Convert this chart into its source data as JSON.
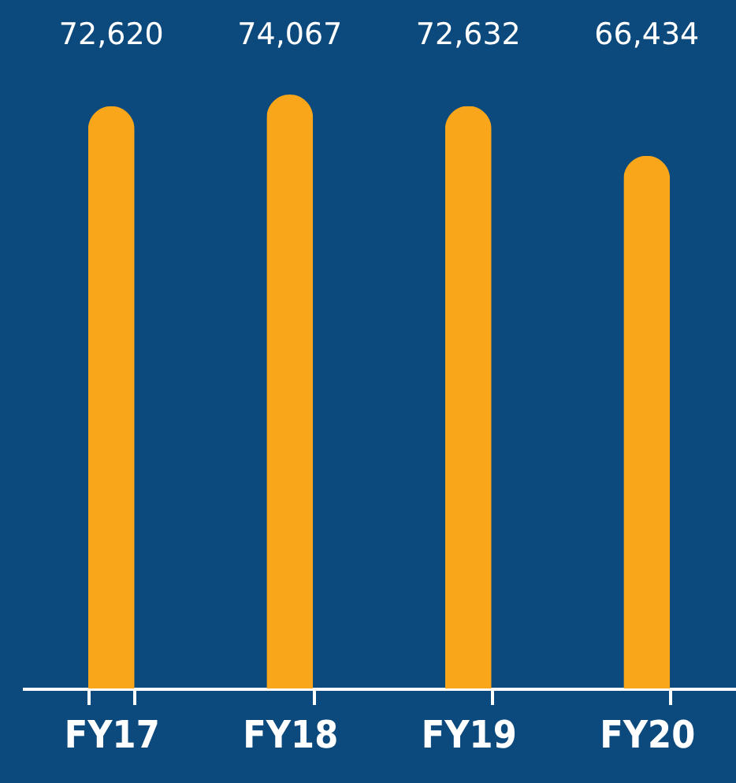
{
  "chart_data": {
    "type": "bar",
    "categories": [
      "FY17",
      "FY18",
      "FY19",
      "FY20"
    ],
    "values": [
      72620,
      74067,
      72632,
      66434
    ],
    "value_labels": [
      "72,620",
      "74,067",
      "72,632",
      "66,434"
    ],
    "color": "#f9a61a"
  }
}
